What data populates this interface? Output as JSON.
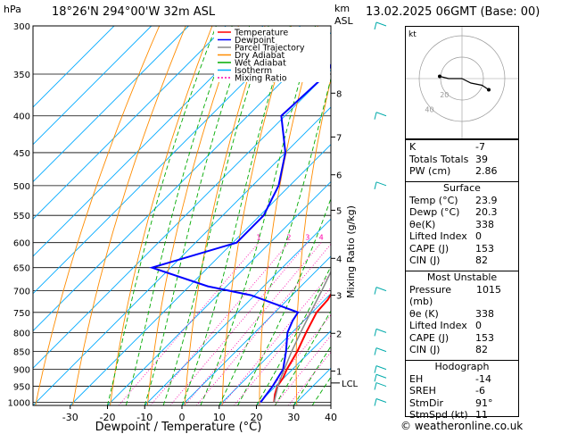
{
  "header": {
    "hpa_label": "hPa",
    "location": "18°26'N  294°00'W  32m  ASL",
    "km_label": "km",
    "asl_label": "ASL",
    "date": "13.02.2025  06GMT  (Base: 00)"
  },
  "colors": {
    "temperature": "#ff0000",
    "dewpoint": "#0000ff",
    "parcel": "#888888",
    "dry_adiabat": "#ff8c00",
    "wet_adiabat": "#00aa00",
    "isotherm": "#00aaff",
    "mixing_ratio": "#ff00aa"
  },
  "chart_data": {
    "type": "line",
    "xlabel": "Dewpoint / Temperature (°C)",
    "ylabel_left": "hPa",
    "ylabel_right_1": "km ASL",
    "ylabel_right_2": "Mixing Ratio (g/kg)",
    "x_ticks": [
      -30,
      -20,
      -10,
      0,
      10,
      20,
      30,
      40
    ],
    "xlim": [
      -40,
      40
    ],
    "pressure_levels": [
      300,
      350,
      400,
      450,
      500,
      550,
      600,
      650,
      700,
      750,
      800,
      850,
      900,
      950,
      1000
    ],
    "ylim_hpa": [
      300,
      1010
    ],
    "y_scale": "log",
    "km_ticks": [
      {
        "label": "8",
        "p": 372
      },
      {
        "label": "7",
        "p": 428
      },
      {
        "label": "6",
        "p": 483
      },
      {
        "label": "5",
        "p": 541
      },
      {
        "label": "4",
        "p": 631
      },
      {
        "label": "3",
        "p": 710
      },
      {
        "label": "2",
        "p": 802
      },
      {
        "label": "1",
        "p": 905
      }
    ],
    "lcl_label": "LCL",
    "lcl_p": 940,
    "mixing_ratio_labels": [
      {
        "label": "1",
        "w": 1
      },
      {
        "label": "2",
        "w": 2
      },
      {
        "label": "3",
        "w": 3
      },
      {
        "label": "4",
        "w": 4
      },
      {
        "label": "5",
        "w": 5
      },
      {
        "label": "8",
        "w": 8
      },
      {
        "label": "10",
        "w": 10
      },
      {
        "label": "15",
        "w": 15
      },
      {
        "label": "20",
        "w": 20
      },
      {
        "label": "25",
        "w": 25
      }
    ],
    "legend_position": "top-right",
    "legend": [
      {
        "label": "Temperature",
        "key": "temperature",
        "dash": ""
      },
      {
        "label": "Dewpoint",
        "key": "dewpoint",
        "dash": ""
      },
      {
        "label": "Parcel Trajectory",
        "key": "parcel",
        "dash": ""
      },
      {
        "label": "Dry Adiabat",
        "key": "dry_adiabat",
        "dash": ""
      },
      {
        "label": "Wet Adiabat",
        "key": "wet_adiabat",
        "dash": ""
      },
      {
        "label": "Isotherm",
        "key": "isotherm",
        "dash": ""
      },
      {
        "label": "Mixing Ratio",
        "key": "mixing_ratio",
        "dash": "2,2"
      }
    ],
    "series": [
      {
        "name": "Temperature",
        "key": "temperature",
        "points": [
          [
            1000,
            23.9
          ],
          [
            975,
            22
          ],
          [
            950,
            20.5
          ],
          [
            925,
            19.8
          ],
          [
            900,
            18.5
          ],
          [
            850,
            16.5
          ],
          [
            800,
            13.8
          ],
          [
            750,
            11.2
          ],
          [
            720,
            10.8
          ],
          [
            700,
            9.8
          ],
          [
            650,
            6.5
          ],
          [
            600,
            3.2
          ],
          [
            550,
            -1.5
          ],
          [
            500,
            -6.5
          ],
          [
            450,
            -11.5
          ],
          [
            400,
            -17
          ],
          [
            350,
            -24.5
          ],
          [
            300,
            -33
          ]
        ]
      },
      {
        "name": "Dewpoint",
        "key": "dewpoint",
        "points": [
          [
            1000,
            20.3
          ],
          [
            950,
            19.2
          ],
          [
            900,
            17.5
          ],
          [
            850,
            13.5
          ],
          [
            800,
            8.8
          ],
          [
            770,
            7
          ],
          [
            750,
            6.2
          ],
          [
            710,
            -11
          ],
          [
            690,
            -25
          ],
          [
            650,
            -45
          ],
          [
            600,
            -29
          ],
          [
            550,
            -29
          ],
          [
            500,
            -33
          ],
          [
            450,
            -40
          ],
          [
            400,
            -51
          ],
          [
            350,
            -50
          ],
          [
            300,
            -57
          ]
        ]
      },
      {
        "name": "Parcel Trajectory",
        "key": "parcel",
        "points": [
          [
            1000,
            23.9
          ],
          [
            940,
            20
          ],
          [
            900,
            17.8
          ],
          [
            850,
            15
          ],
          [
            800,
            12.3
          ],
          [
            750,
            9.6
          ],
          [
            700,
            6.8
          ],
          [
            650,
            3.6
          ],
          [
            600,
            0.2
          ],
          [
            550,
            -3.8
          ],
          [
            500,
            -8.6
          ],
          [
            450,
            -14
          ],
          [
            400,
            -20.5
          ],
          [
            350,
            -28.5
          ],
          [
            300,
            -38
          ]
        ]
      }
    ],
    "wind_barbs": [
      {
        "p": 1000
      },
      {
        "p": 950
      },
      {
        "p": 925
      },
      {
        "p": 900
      },
      {
        "p": 850
      },
      {
        "p": 800
      },
      {
        "p": 700
      },
      {
        "p": 500
      },
      {
        "p": 400
      },
      {
        "p": 300
      }
    ]
  },
  "hodograph": {
    "unit_label": "kt",
    "ring_labels": [
      "20",
      "40"
    ],
    "points": [
      {
        "u": 4,
        "v": -2
      },
      {
        "u": 9,
        "v": -3
      },
      {
        "u": 12,
        "v": -5
      },
      {
        "u": -1,
        "v": 0
      },
      {
        "u": -6,
        "v": 0
      },
      {
        "u": -10,
        "v": 1
      }
    ]
  },
  "indices": {
    "top": [
      {
        "label": "K",
        "value": "-7"
      },
      {
        "label": "Totals Totals",
        "value": "39"
      },
      {
        "label": "PW (cm)",
        "value": "2.86"
      }
    ],
    "surface_title": "Surface",
    "surface": [
      {
        "label": "Temp (°C)",
        "value": "23.9"
      },
      {
        "label": "Dewp (°C)",
        "value": "20.3"
      },
      {
        "label": "θe(K)",
        "value": "338"
      },
      {
        "label": "Lifted Index",
        "value": "0"
      },
      {
        "label": "CAPE (J)",
        "value": "153"
      },
      {
        "label": "CIN (J)",
        "value": "82"
      }
    ],
    "unstable_title": "Most Unstable",
    "unstable": [
      {
        "label": "Pressure (mb)",
        "value": "1015"
      },
      {
        "label": "θe (K)",
        "value": "338"
      },
      {
        "label": "Lifted Index",
        "value": "0"
      },
      {
        "label": "CAPE (J)",
        "value": "153"
      },
      {
        "label": "CIN (J)",
        "value": "82"
      }
    ],
    "hodograph_title": "Hodograph",
    "hodo": [
      {
        "label": "EH",
        "value": "-14"
      },
      {
        "label": "SREH",
        "value": "-6"
      },
      {
        "label": "StmDir",
        "value": "91°"
      },
      {
        "label": "StmSpd (kt)",
        "value": "11"
      }
    ]
  },
  "copyright": "© weatheronline.co.uk"
}
